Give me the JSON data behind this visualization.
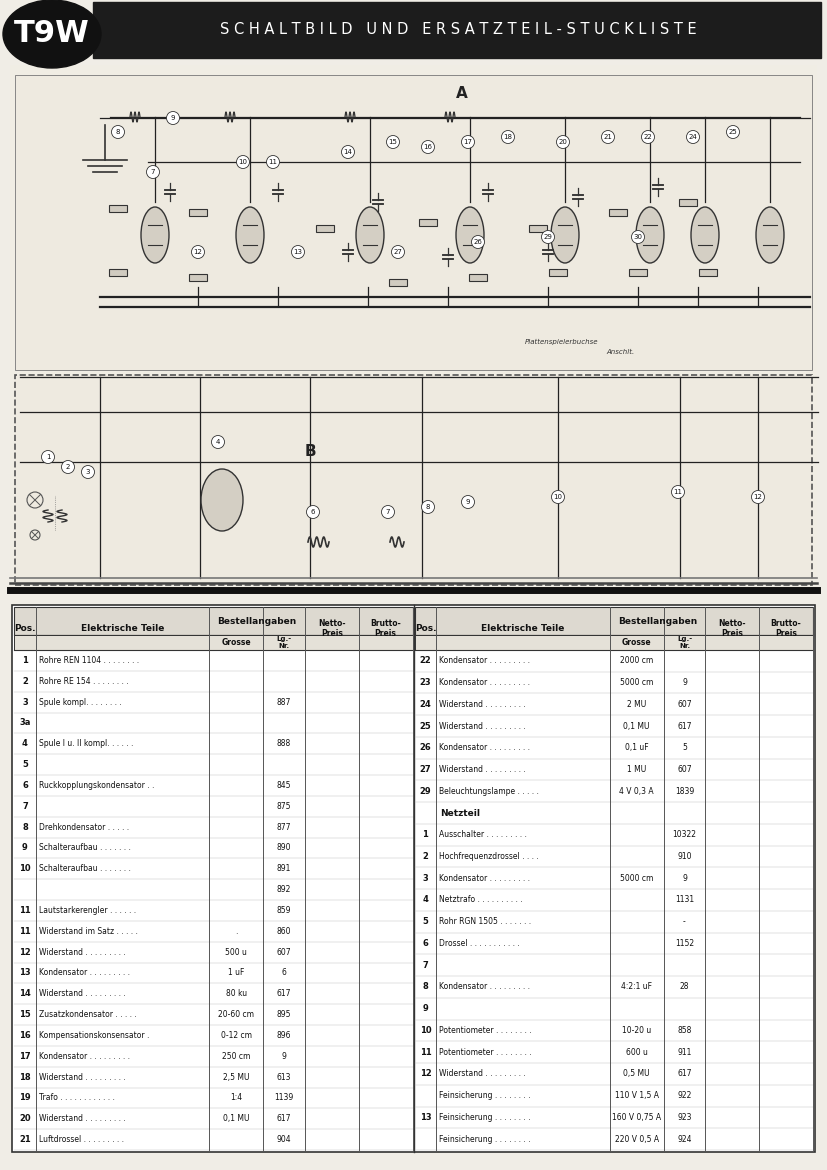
{
  "title": "SCHALTBILD UND ERSATZTEIL-STUCKLISTE",
  "model": "T9W",
  "bg_color": "#f0ede6",
  "header_bg": "#1a1a1a",
  "header_text_color": "#ffffff",
  "schematic_bg": "#f5f2eb",
  "table_bg": "#ffffff",
  "table_border": "#333333",
  "left_rows": [
    [
      "1",
      "Rohre REN 1104 . . . . . . . .",
      "",
      "",
      "",
      ""
    ],
    [
      "2",
      "Rohre RE 154 . . . . . . . .",
      "",
      "",
      "",
      ""
    ],
    [
      "3",
      "Spule kompl. . . . . . . .",
      "",
      "887",
      "",
      ""
    ],
    [
      "3a",
      "",
      "",
      "",
      "",
      ""
    ],
    [
      "4",
      "Spule I u. II kompl. . . . . .",
      "",
      "888",
      "",
      ""
    ],
    [
      "5",
      "",
      "",
      "",
      "",
      ""
    ],
    [
      "6",
      "Ruckkopplungskondensator . .",
      "",
      "845",
      "",
      ""
    ],
    [
      "7",
      "",
      "",
      "875",
      "",
      ""
    ],
    [
      "8",
      "Drehkondensator . . . . .",
      "",
      "877",
      "",
      ""
    ],
    [
      "9",
      "Schalteraufbau . . . . . . .",
      "",
      "890",
      "",
      ""
    ],
    [
      "10",
      "Schalteraufbau . . . . . . .",
      "",
      "891",
      "",
      ""
    ],
    [
      "",
      "",
      "",
      "892",
      "",
      ""
    ],
    [
      "11",
      "Lautstarkerengler . . . . . .",
      "",
      "859",
      "",
      ""
    ],
    [
      "11",
      "Widerstand im Satz . . . . .",
      ".",
      "860",
      "",
      ""
    ],
    [
      "12",
      "Widerstand . . . . . . . . .",
      "500 u",
      "607",
      "",
      ""
    ],
    [
      "13",
      "Kondensator . . . . . . . . .",
      "1 uF",
      "6",
      "",
      ""
    ],
    [
      "14",
      "Widerstand . . . . . . . . .",
      "80 ku",
      "617",
      "",
      ""
    ],
    [
      "15",
      "Zusatzkondensator . . . . .",
      "20-60 cm",
      "895",
      "",
      ""
    ],
    [
      "16",
      "Kompensationskonsensator .",
      "0-12 cm",
      "896",
      "",
      ""
    ],
    [
      "17",
      "Kondensator . . . . . . . . .",
      "250 cm",
      "9",
      "",
      ""
    ],
    [
      "18",
      "Widerstand . . . . . . . . .",
      "2,5 MU",
      "613",
      "",
      ""
    ],
    [
      "19",
      "Trafo . . . . . . . . . . . .",
      "1:4",
      "1139",
      "",
      ""
    ],
    [
      "20",
      "Widerstand . . . . . . . . .",
      "0,1 MU",
      "617",
      "",
      ""
    ],
    [
      "21",
      "Luftdrossel . . . . . . . . .",
      "",
      "904",
      "",
      ""
    ]
  ],
  "right_rows": [
    [
      "22",
      "Kondensator . . . . . . . . .",
      "2000 cm",
      "",
      "",
      ""
    ],
    [
      "23",
      "Kondensator . . . . . . . . .",
      "5000 cm",
      "9",
      "",
      ""
    ],
    [
      "24",
      "Widerstand . . . . . . . . .",
      "2 MU",
      "607",
      "",
      ""
    ],
    [
      "25",
      "Widerstand . . . . . . . . .",
      "0,1 MU",
      "617",
      "",
      ""
    ],
    [
      "26",
      "Kondensator . . . . . . . . .",
      "0,1 uF",
      "5",
      "",
      ""
    ],
    [
      "27",
      "Widerstand . . . . . . . . .",
      "1 MU",
      "607",
      "",
      ""
    ],
    [
      "29",
      "Beleuchtungslampe . . . . .",
      "4 V 0,3 A",
      "1839",
      "",
      ""
    ],
    [
      "",
      "Netzteil",
      "",
      "",
      "",
      ""
    ],
    [
      "1",
      "Ausschalter . . . . . . . . .",
      "",
      "10322",
      "",
      ""
    ],
    [
      "2",
      "Hochfrequenzdrossel . . . .",
      "",
      "910",
      "",
      ""
    ],
    [
      "3",
      "Kondensator . . . . . . . . .",
      "5000 cm",
      "9",
      "",
      ""
    ],
    [
      "4",
      "Netztrafo . . . . . . . . . .",
      "",
      "1131",
      "",
      ""
    ],
    [
      "5",
      "Rohr RGN 1505 . . . . . . .",
      "",
      "-",
      "",
      ""
    ],
    [
      "6",
      "Drossel . . . . . . . . . . .",
      "",
      "1152",
      "",
      ""
    ],
    [
      "7",
      "",
      "",
      "",
      "",
      ""
    ],
    [
      "8",
      "Kondensator . . . . . . . . .",
      "4:2:1 uF",
      "28",
      "",
      ""
    ],
    [
      "9",
      "",
      "",
      "",
      "",
      ""
    ],
    [
      "10",
      "Potentiometer . . . . . . . .",
      "10-20 u",
      "858",
      "",
      ""
    ],
    [
      "11",
      "Potentiometer . . . . . . . .",
      "600 u",
      "911",
      "",
      ""
    ],
    [
      "12",
      "Widerstand . . . . . . . . .",
      "0,5 MU",
      "617",
      "",
      ""
    ],
    [
      "",
      "Feinsicherung . . . . . . . .",
      "110 V 1,5 A",
      "922",
      "",
      ""
    ],
    [
      "13",
      "Feinsicherung . . . . . . . .",
      "160 V 0,75 A",
      "923",
      "",
      ""
    ],
    [
      "",
      "Feinsicherung . . . . . . . .",
      "220 V 0,5 A",
      "924",
      "",
      ""
    ]
  ]
}
